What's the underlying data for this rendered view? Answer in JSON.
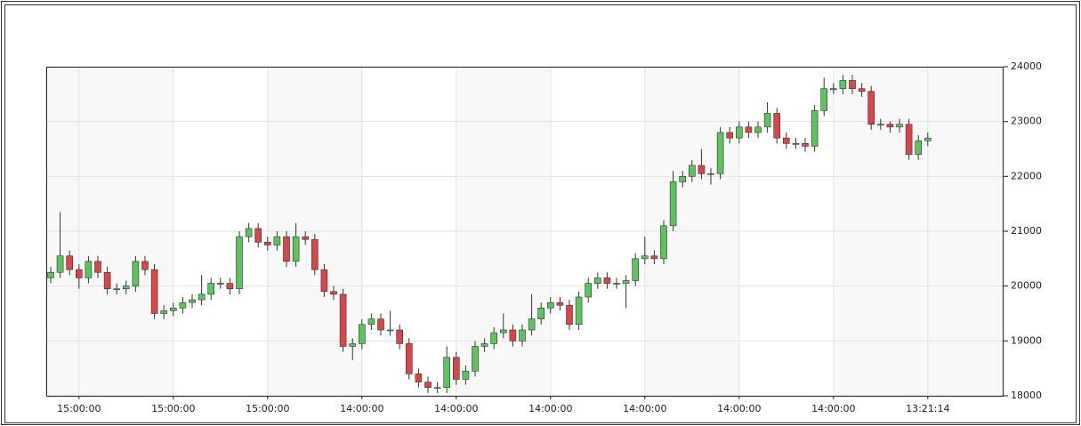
{
  "chart_data": {
    "type": "candlestick",
    "categories": [
      null,
      null,
      null,
      "15:00:00",
      null,
      null,
      null,
      null,
      null,
      null,
      null,
      null,
      null,
      "15:00:00",
      null,
      null,
      null,
      null,
      null,
      null,
      null,
      null,
      null,
      "15:00:00",
      null,
      null,
      null,
      null,
      null,
      null,
      null,
      null,
      null,
      "14:00:00",
      null,
      null,
      null,
      null,
      null,
      null,
      null,
      null,
      null,
      "14:00:00",
      null,
      null,
      null,
      null,
      null,
      null,
      null,
      null,
      null,
      "14:00:00",
      null,
      null,
      null,
      null,
      null,
      null,
      null,
      null,
      null,
      "14:00:00",
      null,
      null,
      null,
      null,
      null,
      null,
      null,
      null,
      null,
      "14:00:00",
      null,
      null,
      null,
      null,
      null,
      null,
      null,
      null,
      null,
      "14:00:00",
      null,
      null,
      null,
      null,
      null,
      null,
      null,
      null,
      null,
      "13:21:14"
    ],
    "open": [
      20150,
      20250,
      20550,
      20300,
      20150,
      20450,
      20250,
      19950,
      19950,
      20000,
      20450,
      20300,
      19500,
      19550,
      19600,
      19700,
      19750,
      19850,
      20050,
      20050,
      19950,
      20900,
      21050,
      20800,
      20750,
      20900,
      20450,
      20900,
      20850,
      20300,
      19900,
      19850,
      18900,
      18950,
      19300,
      19400,
      19200,
      19200,
      18950,
      18400,
      18250,
      18150,
      18150,
      18700,
      18300,
      18450,
      18900,
      18950,
      19150,
      19200,
      19000,
      19200,
      19400,
      19600,
      19700,
      19650,
      19300,
      19800,
      20050,
      20150,
      20050,
      20050,
      20100,
      20500,
      20550,
      20500,
      21100,
      21900,
      22000,
      22200,
      22050,
      22050,
      22800,
      22700,
      22900,
      22800,
      22900,
      23150,
      22700,
      22600,
      22600,
      22550,
      23200,
      23600,
      23600,
      23750,
      23600,
      23550,
      22950,
      22950,
      22900,
      22950,
      22400,
      22650
    ],
    "high": [
      20350,
      21350,
      20650,
      20400,
      20550,
      20550,
      20350,
      20050,
      20100,
      20550,
      20550,
      20400,
      19650,
      19700,
      19800,
      19850,
      20200,
      20150,
      20150,
      20150,
      21000,
      21150,
      21150,
      20900,
      21000,
      21000,
      21150,
      21000,
      20950,
      20400,
      20000,
      19950,
      19050,
      19400,
      19500,
      19500,
      19550,
      19300,
      19050,
      18500,
      18350,
      18250,
      18900,
      18800,
      18550,
      19000,
      19050,
      19250,
      19500,
      19300,
      19300,
      19850,
      19700,
      19800,
      19800,
      19750,
      19900,
      20150,
      20250,
      20250,
      20150,
      20200,
      20600,
      20900,
      20650,
      21200,
      22100,
      22100,
      22300,
      22500,
      22150,
      22900,
      22900,
      23000,
      23000,
      23000,
      23350,
      23250,
      22800,
      22700,
      22700,
      23300,
      23800,
      23700,
      23850,
      23850,
      23700,
      23650,
      23050,
      23000,
      23050,
      23050,
      22750,
      22800
    ],
    "low": [
      20050,
      20150,
      20200,
      19950,
      20050,
      20150,
      19850,
      19850,
      19850,
      19900,
      20200,
      19400,
      19400,
      19450,
      19500,
      19600,
      19650,
      19750,
      19950,
      19850,
      19850,
      20800,
      20700,
      20650,
      20650,
      20350,
      20350,
      20750,
      20200,
      19800,
      19750,
      18800,
      18650,
      18850,
      19200,
      19100,
      19100,
      18850,
      18300,
      18150,
      18050,
      18050,
      18050,
      18200,
      18200,
      18350,
      18800,
      18850,
      19050,
      18900,
      18900,
      19100,
      19300,
      19500,
      19550,
      19200,
      19200,
      19700,
      19950,
      19950,
      19950,
      19600,
      20000,
      20400,
      20400,
      20400,
      21000,
      21800,
      21900,
      21950,
      21850,
      21950,
      22600,
      22600,
      22700,
      22700,
      22800,
      22600,
      22500,
      22500,
      22450,
      22450,
      23100,
      23500,
      23500,
      23500,
      23450,
      22850,
      22850,
      22800,
      22800,
      22300,
      22300,
      22550
    ],
    "close": [
      20250,
      20550,
      20300,
      20150,
      20450,
      20250,
      19950,
      19950,
      20000,
      20450,
      20300,
      19500,
      19550,
      19600,
      19700,
      19750,
      19850,
      20050,
      20050,
      19950,
      20900,
      21050,
      20800,
      20750,
      20900,
      20450,
      20900,
      20850,
      20300,
      19900,
      19850,
      18900,
      18950,
      19300,
      19400,
      19200,
      19200,
      18950,
      18400,
      18250,
      18150,
      18150,
      18700,
      18300,
      18450,
      18900,
      18950,
      19150,
      19200,
      19000,
      19200,
      19400,
      19600,
      19700,
      19650,
      19300,
      19800,
      20050,
      20150,
      20050,
      20050,
      20100,
      20500,
      20550,
      20500,
      21100,
      21900,
      22000,
      22200,
      22050,
      22050,
      22800,
      22700,
      22900,
      22800,
      22900,
      23150,
      22700,
      22600,
      22600,
      22550,
      23200,
      23600,
      23600,
      23750,
      23600,
      23550,
      22950,
      22950,
      22900,
      22950,
      22400,
      22650,
      22700
    ],
    "up_color": "#5cc45c",
    "down_color": "#d9464a",
    "ylim": [
      18000,
      24000
    ],
    "yticks": [
      18000,
      19000,
      20000,
      21000,
      22000,
      23000,
      24000
    ],
    "grid": true
  }
}
